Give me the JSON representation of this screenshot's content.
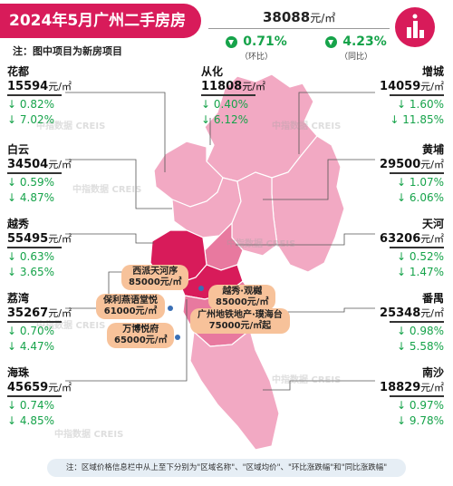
{
  "title": "2024年5月广州二手房房价地图",
  "note_top": "注：图中项目为新房项目",
  "city_avg": {
    "price": "38088",
    "unit": "元/㎡"
  },
  "mom": {
    "value": "0.71%",
    "label": "（环比）"
  },
  "yoy": {
    "value": "4.23%",
    "label": "（同比）"
  },
  "districts": {
    "huadu": {
      "name": "花都",
      "price": "15594",
      "unit": "元/㎡",
      "mom": "↓ 0.82%",
      "yoy": "↓ 7.02%"
    },
    "conghua": {
      "name": "从化",
      "price": "11808",
      "unit": "元/㎡",
      "mom": "↓ 0.40%",
      "yoy": "↓ 6.12%"
    },
    "zengcheng": {
      "name": "增城",
      "price": "14059",
      "unit": "元/㎡",
      "mom": "↓ 1.60%",
      "yoy": "↓ 11.85%"
    },
    "baiyun": {
      "name": "白云",
      "price": "34504",
      "unit": "元/㎡",
      "mom": "↓ 0.59%",
      "yoy": "↓ 4.87%"
    },
    "huangpu": {
      "name": "黄埔",
      "price": "29500",
      "unit": "元/㎡",
      "mom": "↓ 1.07%",
      "yoy": "↓ 6.06%"
    },
    "yuexiu": {
      "name": "越秀",
      "price": "55495",
      "unit": "元/㎡",
      "mom": "↓ 0.63%",
      "yoy": "↓ 3.65%"
    },
    "tianhe": {
      "name": "天河",
      "price": "63206",
      "unit": "元/㎡",
      "mom": "↓ 0.52%",
      "yoy": "↓ 1.47%"
    },
    "liwan": {
      "name": "荔湾",
      "price": "35267",
      "unit": "元/㎡",
      "mom": "↓ 0.70%",
      "yoy": "↓ 4.47%"
    },
    "panyu": {
      "name": "番禺",
      "price": "25348",
      "unit": "元/㎡",
      "mom": "↓ 0.98%",
      "yoy": "↓ 5.58%"
    },
    "haizhu": {
      "name": "海珠",
      "price": "45659",
      "unit": "元/㎡",
      "mom": "↓ 0.74%",
      "yoy": "↓ 4.85%"
    },
    "nansha": {
      "name": "南沙",
      "price": "18829",
      "unit": "元/㎡",
      "mom": "↓ 0.97%",
      "yoy": "↓ 9.78%"
    }
  },
  "projects": [
    {
      "name": "西派天河序",
      "price": "85000元/㎡"
    },
    {
      "name": "越秀·观樾",
      "price": "85000元/㎡"
    },
    {
      "name": "保利燕语堂悦",
      "price": "61000元/㎡"
    },
    {
      "name": "广州地铁地产·璞海台",
      "price": "75000元/㎡起"
    },
    {
      "name": "万博悦府",
      "price": "65000元/㎡"
    }
  ],
  "watermark": "中指数据 CREIS",
  "footer": "注：区域价格信息栏中从上至下分别为\"区域名称\"、\"区域均价\"、\"环比涨跌幅\"和\"同比涨跌幅\"",
  "colors": {
    "brand": "#d81b5a",
    "down": "#16a34a",
    "map_light": "#f2a9c3",
    "map_mid": "#e8799f",
    "map_dark": "#d81b5a"
  }
}
